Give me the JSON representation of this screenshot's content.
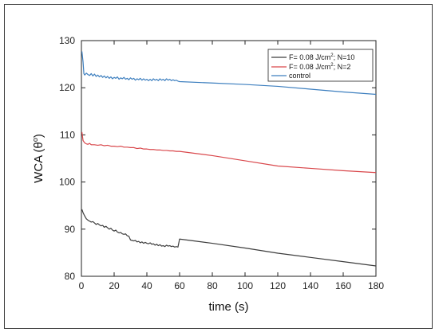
{
  "chart_data": {
    "type": "line",
    "xlabel": "time (s)",
    "ylabel_main": "WCA (θ",
    "ylabel_sup": "o",
    "ylabel_close": ")",
    "xlim": [
      0,
      180
    ],
    "ylim": [
      80,
      130
    ],
    "xticks": [
      0,
      20,
      40,
      60,
      80,
      100,
      120,
      140,
      160,
      180
    ],
    "yticks": [
      80,
      90,
      100,
      110,
      120,
      130
    ],
    "grid": false,
    "legend_position": "top-right",
    "series": [
      {
        "name": "F= 0.08 J/cm2; N=10",
        "legend": {
          "pre": "F= 0.08 J/cm",
          "sup": "2",
          "post": "; N=10"
        },
        "color": "#3d3d3d",
        "points": [
          [
            0.3,
            94.2
          ],
          [
            1,
            93.5
          ],
          [
            2,
            92.8
          ],
          [
            3,
            92.2
          ],
          [
            4,
            91.9
          ],
          [
            5,
            91.7
          ],
          [
            6,
            91.5
          ],
          [
            7,
            91.6
          ],
          [
            8,
            91.3
          ],
          [
            9,
            91.0
          ],
          [
            10,
            91.2
          ],
          [
            11,
            90.9
          ],
          [
            12,
            90.7
          ],
          [
            13,
            90.8
          ],
          [
            14,
            90.4
          ],
          [
            15,
            90.6
          ],
          [
            16,
            90.3
          ],
          [
            17,
            90.0
          ],
          [
            18,
            90.2
          ],
          [
            19,
            89.8
          ],
          [
            20,
            89.6
          ],
          [
            21,
            89.8
          ],
          [
            22,
            89.4
          ],
          [
            23,
            89.2
          ],
          [
            24,
            89.3
          ],
          [
            25,
            89.0
          ],
          [
            26,
            88.9
          ],
          [
            27,
            89.0
          ],
          [
            28,
            88.6
          ],
          [
            29,
            88.5
          ],
          [
            30,
            87.7
          ],
          [
            31,
            87.6
          ],
          [
            32,
            87.5
          ],
          [
            33,
            87.6
          ],
          [
            34,
            87.3
          ],
          [
            35,
            87.4
          ],
          [
            36,
            87.1
          ],
          [
            37,
            87.3
          ],
          [
            38,
            87.0
          ],
          [
            39,
            87.2
          ],
          [
            40,
            87.0
          ],
          [
            41,
            86.9
          ],
          [
            42,
            87.1
          ],
          [
            43,
            86.8
          ],
          [
            44,
            86.9
          ],
          [
            45,
            86.6
          ],
          [
            46,
            86.8
          ],
          [
            47,
            86.5
          ],
          [
            48,
            86.7
          ],
          [
            49,
            86.4
          ],
          [
            50,
            86.5
          ],
          [
            51,
            86.3
          ],
          [
            52,
            86.6
          ],
          [
            53,
            86.4
          ],
          [
            54,
            86.5
          ],
          [
            55,
            86.3
          ],
          [
            56,
            86.4
          ],
          [
            57,
            86.2
          ],
          [
            58,
            86.3
          ],
          [
            59,
            86.2
          ],
          [
            60,
            87.9
          ],
          [
            80,
            87.0
          ],
          [
            100,
            86.0
          ],
          [
            120,
            84.9
          ],
          [
            140,
            84.0
          ],
          [
            160,
            83.1
          ],
          [
            180,
            82.2
          ]
        ]
      },
      {
        "name": "F= 0.08 J/cm2; N=2",
        "legend": {
          "pre": "F= 0.08 J/cm",
          "sup": "2",
          "post": "; N=2"
        },
        "color": "#d9474b",
        "points": [
          [
            0.3,
            110.6
          ],
          [
            1,
            108.8
          ],
          [
            2,
            108.3
          ],
          [
            3,
            108.1
          ],
          [
            4,
            108.0
          ],
          [
            5,
            108.2
          ],
          [
            6,
            107.9
          ],
          [
            8,
            107.9
          ],
          [
            10,
            107.8
          ],
          [
            12,
            107.9
          ],
          [
            14,
            107.7
          ],
          [
            16,
            107.8
          ],
          [
            18,
            107.6
          ],
          [
            20,
            107.6
          ],
          [
            22,
            107.5
          ],
          [
            24,
            107.6
          ],
          [
            26,
            107.4
          ],
          [
            28,
            107.4
          ],
          [
            30,
            107.3
          ],
          [
            32,
            107.3
          ],
          [
            34,
            107.1
          ],
          [
            36,
            107.2
          ],
          [
            38,
            107.0
          ],
          [
            40,
            107.0
          ],
          [
            42,
            106.9
          ],
          [
            44,
            106.9
          ],
          [
            46,
            106.8
          ],
          [
            48,
            106.8
          ],
          [
            50,
            106.7
          ],
          [
            52,
            106.7
          ],
          [
            54,
            106.6
          ],
          [
            56,
            106.6
          ],
          [
            58,
            106.5
          ],
          [
            60,
            106.5
          ],
          [
            80,
            105.6
          ],
          [
            100,
            104.5
          ],
          [
            120,
            103.4
          ],
          [
            140,
            102.9
          ],
          [
            160,
            102.4
          ],
          [
            180,
            102.0
          ]
        ]
      },
      {
        "name": "control",
        "legend": {
          "pre": "control",
          "sup": "",
          "post": ""
        },
        "color": "#3d7fbf",
        "points": [
          [
            0.3,
            127.7
          ],
          [
            1,
            125.5
          ],
          [
            1.5,
            123.0
          ],
          [
            2,
            122.7
          ],
          [
            3,
            123.1
          ],
          [
            4,
            122.8
          ],
          [
            5,
            122.6
          ],
          [
            6,
            123.0
          ],
          [
            7,
            122.5
          ],
          [
            8,
            122.9
          ],
          [
            9,
            122.4
          ],
          [
            10,
            122.7
          ],
          [
            11,
            122.3
          ],
          [
            12,
            122.6
          ],
          [
            13,
            122.2
          ],
          [
            14,
            122.5
          ],
          [
            15,
            122.1
          ],
          [
            16,
            122.4
          ],
          [
            17,
            122.0
          ],
          [
            18,
            122.3
          ],
          [
            19,
            121.9
          ],
          [
            20,
            122.2
          ],
          [
            21,
            122.0
          ],
          [
            22,
            122.3
          ],
          [
            23,
            121.8
          ],
          [
            24,
            122.1
          ],
          [
            25,
            121.9
          ],
          [
            26,
            122.2
          ],
          [
            27,
            121.8
          ],
          [
            28,
            122.0
          ],
          [
            29,
            121.7
          ],
          [
            30,
            122.1
          ],
          [
            31,
            121.8
          ],
          [
            32,
            122.0
          ],
          [
            33,
            121.6
          ],
          [
            34,
            121.9
          ],
          [
            35,
            121.7
          ],
          [
            36,
            122.0
          ],
          [
            37,
            121.6
          ],
          [
            38,
            121.9
          ],
          [
            39,
            121.6
          ],
          [
            40,
            121.8
          ],
          [
            41,
            121.5
          ],
          [
            42,
            121.8
          ],
          [
            43,
            121.5
          ],
          [
            44,
            121.9
          ],
          [
            45,
            121.6
          ],
          [
            46,
            121.8
          ],
          [
            47,
            121.5
          ],
          [
            48,
            121.9
          ],
          [
            49,
            121.6
          ],
          [
            50,
            121.8
          ],
          [
            51,
            121.5
          ],
          [
            52,
            121.9
          ],
          [
            53,
            121.6
          ],
          [
            54,
            121.8
          ],
          [
            55,
            121.5
          ],
          [
            56,
            121.7
          ],
          [
            57,
            121.5
          ],
          [
            58,
            121.6
          ],
          [
            59,
            121.4
          ],
          [
            60,
            121.3
          ],
          [
            80,
            121.0
          ],
          [
            100,
            120.7
          ],
          [
            120,
            120.3
          ],
          [
            140,
            119.7
          ],
          [
            160,
            119.1
          ],
          [
            180,
            118.6
          ]
        ]
      }
    ]
  }
}
